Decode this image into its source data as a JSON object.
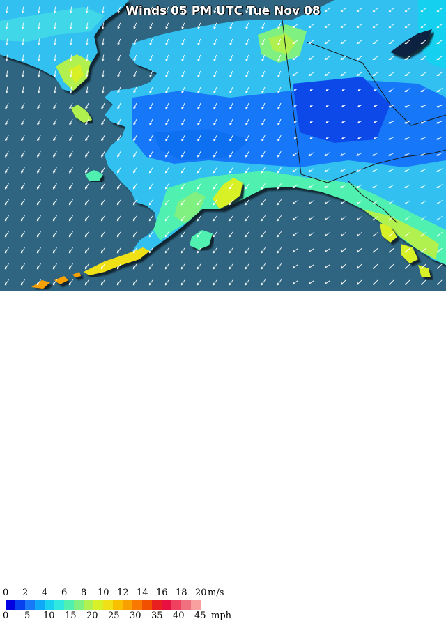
{
  "title": "Winds 05 PM UTC Tue Nov 08",
  "legend": {
    "ms_ticks": [
      "0",
      "2",
      "4",
      "6",
      "8",
      "10",
      "12",
      "14",
      "16",
      "18",
      "20"
    ],
    "ms_unit": "m/s",
    "mph_ticks": [
      "0",
      "5",
      "10",
      "15",
      "20",
      "25",
      "30",
      "35",
      "40",
      "45"
    ],
    "mph_unit": "mph",
    "colors": [
      "#0000e0",
      "#0840f0",
      "#1878f8",
      "#10a8f8",
      "#18d0f0",
      "#30e8e0",
      "#50f0b0",
      "#80f080",
      "#b0f050",
      "#d8f028",
      "#f0e018",
      "#f8c000",
      "#f8a000",
      "#f87800",
      "#f05000",
      "#e82020",
      "#e81040",
      "#f04060",
      "#f07080",
      "#f8a0a0"
    ]
  },
  "arrows": {
    "color": "#ffffff",
    "shape": "arrow-icon"
  },
  "colors": {
    "ocean": "#2f6580",
    "land_low": "#2080f0",
    "land_mid": "#30c0f0",
    "land_high": "#60e8d0"
  }
}
